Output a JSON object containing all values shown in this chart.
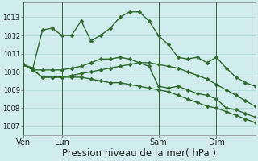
{
  "background_color": "#d0ecec",
  "grid_color": "#a8d8d8",
  "line_color": "#2d6a2d",
  "xlabel": "Pression niveau de la mer( hPa )",
  "xlabel_fontsize": 8.5,
  "ylim": [
    1006.5,
    1013.8
  ],
  "yticks": [
    1007,
    1008,
    1009,
    1010,
    1011,
    1012,
    1013
  ],
  "xtick_labels": [
    "Ven",
    "Lun",
    "Sam",
    "Dim"
  ],
  "vline_x": [
    0.0,
    0.167,
    0.583,
    0.833
  ],
  "series": {
    "line1_x": [
      0.0,
      0.042,
      0.083,
      0.125,
      0.167,
      0.208,
      0.25,
      0.292,
      0.333,
      0.375,
      0.417,
      0.458,
      0.5,
      0.542,
      0.583,
      0.625,
      0.667,
      0.708,
      0.75,
      0.792,
      0.833,
      0.875,
      0.917,
      0.958,
      1.0
    ],
    "line1_y": [
      1010.4,
      1010.2,
      1012.3,
      1012.4,
      1012.0,
      1012.0,
      1012.8,
      1011.7,
      1012.0,
      1012.4,
      1013.0,
      1013.3,
      1013.3,
      1012.8,
      1012.0,
      1011.5,
      1010.8,
      1010.7,
      1010.8,
      1010.5,
      1010.8,
      1010.2,
      1009.7,
      1009.4,
      1009.2
    ],
    "line2_x": [
      0.0,
      0.042,
      0.083,
      0.125,
      0.167,
      0.208,
      0.25,
      0.292,
      0.333,
      0.375,
      0.417,
      0.458,
      0.5,
      0.542,
      0.583,
      0.625,
      0.667,
      0.708,
      0.75,
      0.792,
      0.833,
      0.875,
      0.917,
      0.958,
      1.0
    ],
    "line2_y": [
      1010.4,
      1010.1,
      1010.1,
      1010.1,
      1010.1,
      1010.2,
      1010.3,
      1010.5,
      1010.7,
      1010.7,
      1010.8,
      1010.7,
      1010.5,
      1010.3,
      1009.2,
      1009.1,
      1009.2,
      1009.0,
      1008.8,
      1008.7,
      1008.5,
      1008.0,
      1007.9,
      1007.7,
      1007.5
    ],
    "line3_x": [
      0.0,
      0.042,
      0.083,
      0.125,
      0.167,
      0.208,
      0.25,
      0.292,
      0.333,
      0.375,
      0.417,
      0.458,
      0.5,
      0.542,
      0.583,
      0.625,
      0.667,
      0.708,
      0.75,
      0.792,
      0.833,
      0.875,
      0.917,
      0.958,
      1.0
    ],
    "line3_y": [
      1010.4,
      1010.1,
      1009.7,
      1009.7,
      1009.7,
      1009.8,
      1009.9,
      1010.0,
      1010.1,
      1010.2,
      1010.3,
      1010.4,
      1010.5,
      1010.5,
      1010.4,
      1010.3,
      1010.2,
      1010.0,
      1009.8,
      1009.6,
      1009.3,
      1009.0,
      1008.7,
      1008.4,
      1008.1
    ],
    "line4_x": [
      0.0,
      0.042,
      0.083,
      0.125,
      0.167,
      0.208,
      0.25,
      0.292,
      0.333,
      0.375,
      0.417,
      0.458,
      0.5,
      0.542,
      0.583,
      0.625,
      0.667,
      0.708,
      0.75,
      0.792,
      0.833,
      0.875,
      0.917,
      0.958,
      1.0
    ],
    "line4_y": [
      1010.4,
      1010.1,
      1009.7,
      1009.7,
      1009.7,
      1009.7,
      1009.7,
      1009.6,
      1009.5,
      1009.4,
      1009.4,
      1009.3,
      1009.2,
      1009.1,
      1009.0,
      1008.9,
      1008.7,
      1008.5,
      1008.3,
      1008.1,
      1008.0,
      1007.8,
      1007.6,
      1007.4,
      1007.2
    ]
  },
  "xtick_positions": [
    0.0,
    0.167,
    0.583,
    0.833
  ]
}
